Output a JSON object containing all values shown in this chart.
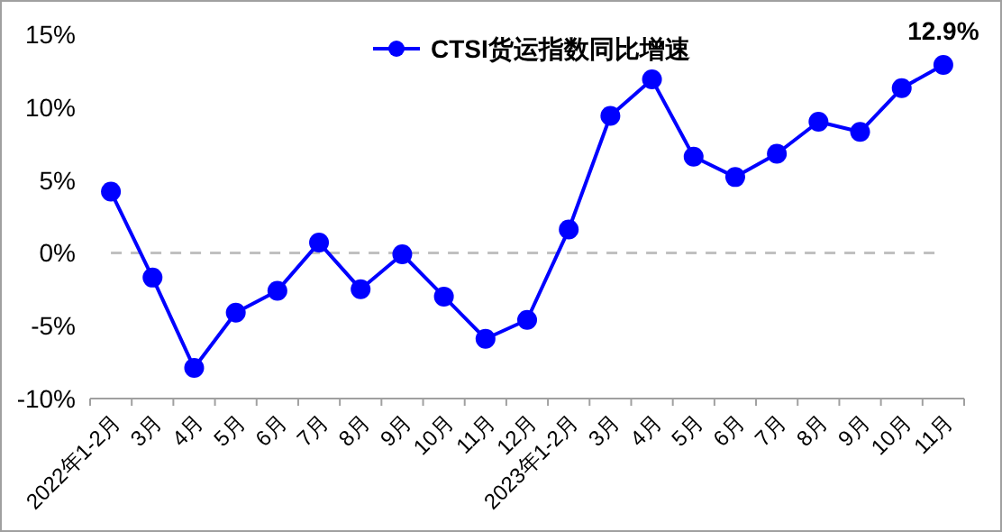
{
  "chart_data": {
    "type": "line",
    "categories": [
      "2022年1-2月",
      "3月",
      "4月",
      "5月",
      "6月",
      "7月",
      "8月",
      "9月",
      "10月",
      "11月",
      "12月",
      "2023年1-2月",
      "3月",
      "4月",
      "5月",
      "6月",
      "7月",
      "8月",
      "9月",
      "10月",
      "11月"
    ],
    "series": [
      {
        "name": "CTSI货运指数同比增速",
        "color": "#0000ff",
        "values": [
          4.2,
          -1.7,
          -7.9,
          -4.1,
          -2.6,
          0.7,
          -2.5,
          -0.1,
          -3.0,
          -5.9,
          -4.6,
          1.6,
          9.4,
          11.9,
          6.6,
          5.2,
          6.8,
          9.0,
          8.3,
          11.3,
          12.9
        ],
        "value_labels": [
          null,
          null,
          null,
          null,
          null,
          null,
          null,
          null,
          null,
          null,
          null,
          null,
          null,
          null,
          null,
          null,
          null,
          null,
          null,
          null,
          "12.9%"
        ]
      }
    ],
    "ylim": [
      -10,
      15
    ],
    "yticks": [
      {
        "value": -10,
        "label": "-10%"
      },
      {
        "value": -5,
        "label": "-5%"
      },
      {
        "value": 0,
        "label": "0%"
      },
      {
        "value": 5,
        "label": "5%"
      },
      {
        "value": 10,
        "label": "10%"
      },
      {
        "value": 15,
        "label": "15%"
      }
    ],
    "ref_lines": [
      {
        "axis": "y",
        "value": 0,
        "color": "#c0c0c0",
        "line_style": "dashed"
      }
    ],
    "legend": "top",
    "marker": "circle",
    "line_style": "solid",
    "grid": false
  }
}
